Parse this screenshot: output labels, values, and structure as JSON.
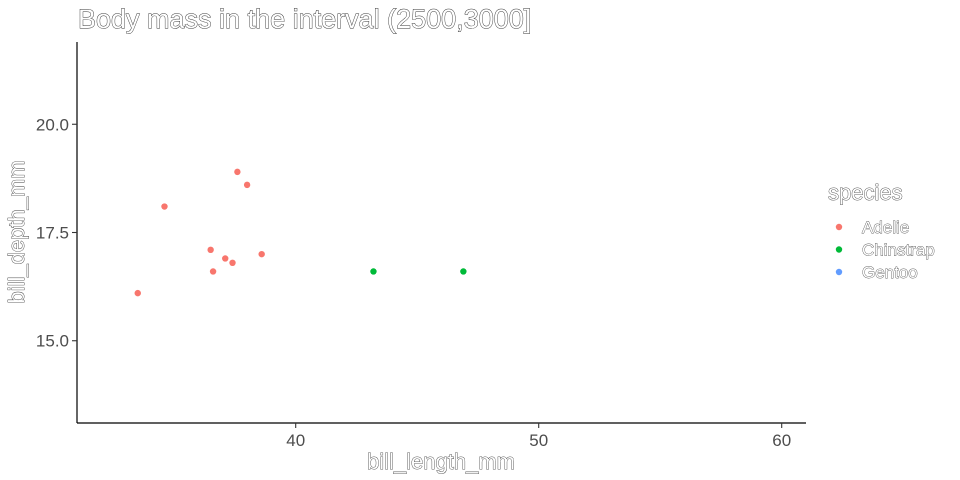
{
  "chart_data": {
    "type": "scatter",
    "title": "Body mass in the interval (2500,3000]",
    "xlabel": "bill_length_mm",
    "ylabel": "bill_depth_mm",
    "xlim": [
      31.0,
      61.0
    ],
    "ylim": [
      13.1,
      21.9
    ],
    "x_ticks": [
      40,
      50,
      60
    ],
    "x_tick_labels": [
      "40",
      "50",
      "60"
    ],
    "y_ticks": [
      15.0,
      17.5,
      20.0
    ],
    "y_tick_labels": [
      "15.0",
      "17.5",
      "20.0"
    ],
    "grid": false,
    "legend": {
      "title": "species",
      "position": "right",
      "entries": [
        {
          "label": "Adelie",
          "color": "#F8766D"
        },
        {
          "label": "Chinstrap",
          "color": "#00BA38"
        },
        {
          "label": "Gentoo",
          "color": "#619CFF"
        }
      ]
    },
    "series": [
      {
        "name": "Adelie",
        "color": "#F8766D",
        "points": [
          {
            "x": 33.5,
            "y": 16.1
          },
          {
            "x": 34.6,
            "y": 18.1
          },
          {
            "x": 36.5,
            "y": 17.1
          },
          {
            "x": 36.6,
            "y": 16.6
          },
          {
            "x": 37.1,
            "y": 16.9
          },
          {
            "x": 37.4,
            "y": 16.8
          },
          {
            "x": 37.6,
            "y": 18.9
          },
          {
            "x": 38.0,
            "y": 18.6
          },
          {
            "x": 38.6,
            "y": 17.0
          }
        ]
      },
      {
        "name": "Chinstrap",
        "color": "#00BA38",
        "points": [
          {
            "x": 43.2,
            "y": 16.6
          },
          {
            "x": 46.9,
            "y": 16.6
          }
        ]
      },
      {
        "name": "Gentoo",
        "color": "#619CFF",
        "points": []
      }
    ]
  }
}
